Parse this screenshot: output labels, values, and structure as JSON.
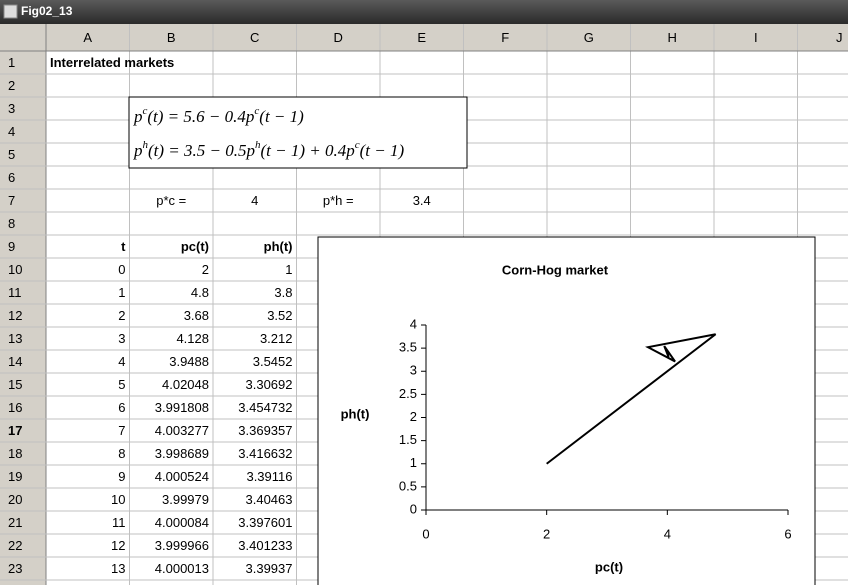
{
  "window": {
    "title": "Fig02_13"
  },
  "columns": [
    "A",
    "B",
    "C",
    "D",
    "E",
    "F",
    "G",
    "H",
    "I",
    "J"
  ],
  "row_numbers": [
    1,
    2,
    3,
    4,
    5,
    6,
    7,
    8,
    9,
    10,
    11,
    12,
    13,
    14,
    15,
    16,
    17,
    18,
    19,
    20,
    21,
    22,
    23
  ],
  "sheet_title": "Interrelated markets",
  "equations": [
    [
      {
        "text": "p"
      },
      {
        "sup": "c"
      },
      {
        "text": "(t) = 5.6 − 0.4p"
      },
      {
        "sup": "c"
      },
      {
        "text": "(t − 1)"
      }
    ],
    [
      {
        "text": "p"
      },
      {
        "sup": "h"
      },
      {
        "text": "(t) = 3.5 − 0.5p"
      },
      {
        "sup": "h"
      },
      {
        "text": "(t − 1) + 0.4p"
      },
      {
        "sup": "c"
      },
      {
        "text": "(t − 1)"
      }
    ]
  ],
  "equilibrium": {
    "pc_label": "p*c =",
    "pc": 4,
    "ph_label": "p*h =",
    "ph": 3.4
  },
  "table": {
    "header": [
      "t",
      "pc(t)",
      "ph(t)"
    ],
    "rows": [
      [
        0,
        2,
        1
      ],
      [
        1,
        4.8,
        3.8
      ],
      [
        2,
        3.68,
        3.52
      ],
      [
        3,
        4.128,
        3.212
      ],
      [
        4,
        3.9488,
        3.5452
      ],
      [
        5,
        4.02048,
        3.30692
      ],
      [
        6,
        3.991808,
        3.454732
      ],
      [
        7,
        4.003277,
        3.369357
      ],
      [
        8,
        3.998689,
        3.416632
      ],
      [
        9,
        4.000524,
        3.39116
      ],
      [
        10,
        3.99979,
        3.40463
      ],
      [
        11,
        4.000084,
        3.397601
      ],
      [
        12,
        3.999966,
        3.401233
      ],
      [
        13,
        4.000013,
        3.39937
      ]
    ]
  },
  "chart": {
    "type": "line",
    "title": "Corn-Hog market",
    "x_label": "pc(t)",
    "y_label": "ph(t)",
    "xlim": [
      0,
      6
    ],
    "xticks": [
      0,
      2,
      4,
      6
    ],
    "ylim": [
      0,
      4
    ],
    "yticks": [
      0,
      0.5,
      1,
      1.5,
      2,
      2.5,
      3,
      3.5,
      4
    ],
    "color": "#000000"
  }
}
